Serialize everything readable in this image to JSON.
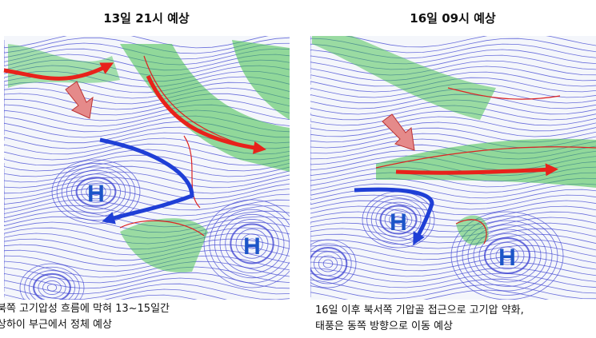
{
  "panels": [
    {
      "title": "13일 21시 예상",
      "highs": [
        "H",
        "H"
      ],
      "caption": [
        "북쪽 고기압성 흐름에 막혀 13~15일간",
        "상하이 부근에서 정체 예상"
      ]
    },
    {
      "title": "16일 09시 예상",
      "highs": [
        "H",
        "H"
      ],
      "caption": [
        "16일 이후 북서쪽 기압골 접근으로 고기압 약화,",
        "태풍은 동쪽 방향으로 이동 예상"
      ]
    }
  ]
}
